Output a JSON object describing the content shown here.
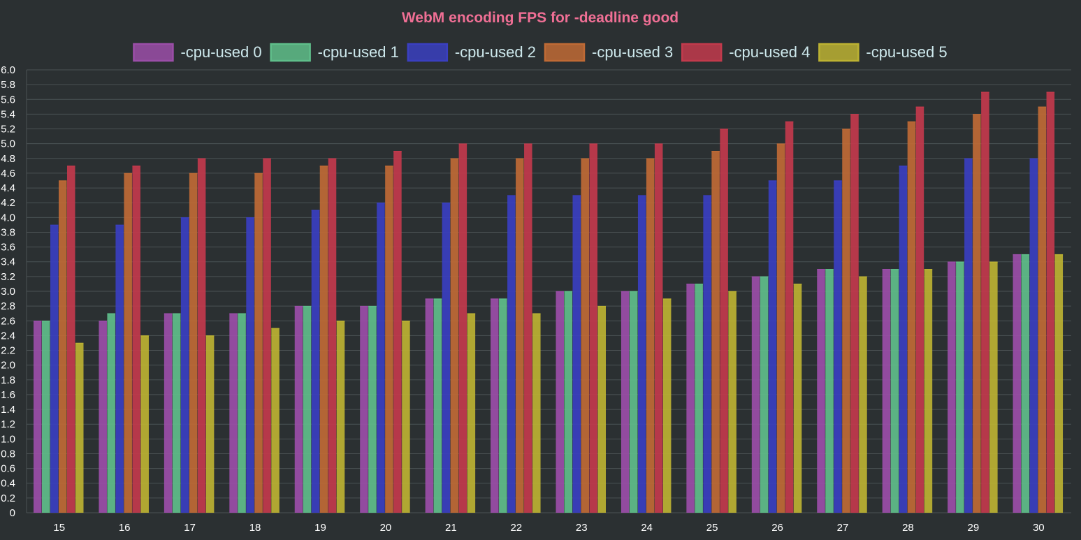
{
  "colors": {
    "background": "#2b3032",
    "grid": "#4b5254",
    "title": "#f06f95",
    "legend_text": "#cde8ec",
    "tick_text": "#ffffff"
  },
  "chart_data": {
    "type": "bar",
    "title": "WebM encoding FPS for -deadline good",
    "xlabel": "",
    "ylabel": "",
    "categories": [
      "15",
      "16",
      "17",
      "18",
      "19",
      "20",
      "21",
      "22",
      "23",
      "24",
      "25",
      "26",
      "27",
      "28",
      "29",
      "30"
    ],
    "ylim": [
      0,
      6.0
    ],
    "ytick_step": 0.2,
    "grid": true,
    "legend_position": "top",
    "series": [
      {
        "name": "-cpu-used 0",
        "color": "#9b4ea8",
        "values": [
          2.6,
          2.6,
          2.7,
          2.7,
          2.8,
          2.8,
          2.9,
          2.9,
          3.0,
          3.0,
          3.1,
          3.2,
          3.3,
          3.3,
          3.4,
          3.5
        ]
      },
      {
        "name": "-cpu-used 1",
        "color": "#5fbe8a",
        "values": [
          2.6,
          2.7,
          2.7,
          2.7,
          2.8,
          2.8,
          2.9,
          2.9,
          3.0,
          3.0,
          3.1,
          3.2,
          3.3,
          3.3,
          3.4,
          3.5
        ]
      },
      {
        "name": "-cpu-used 2",
        "color": "#3a3fc0",
        "values": [
          3.9,
          3.9,
          4.0,
          4.0,
          4.1,
          4.2,
          4.2,
          4.3,
          4.3,
          4.3,
          4.3,
          4.5,
          4.5,
          4.7,
          4.8,
          4.8
        ]
      },
      {
        "name": "-cpu-used 3",
        "color": "#bf6a35",
        "values": [
          4.5,
          4.6,
          4.6,
          4.6,
          4.7,
          4.7,
          4.8,
          4.8,
          4.8,
          4.8,
          4.9,
          5.0,
          5.2,
          5.3,
          5.4,
          5.5
        ]
      },
      {
        "name": "-cpu-used 4",
        "color": "#c23a4c",
        "values": [
          4.7,
          4.7,
          4.8,
          4.8,
          4.8,
          4.9,
          5.0,
          5.0,
          5.0,
          5.0,
          5.2,
          5.3,
          5.4,
          5.5,
          5.7,
          5.7
        ]
      },
      {
        "name": "-cpu-used 5",
        "color": "#bcb232",
        "values": [
          2.3,
          2.4,
          2.4,
          2.5,
          2.6,
          2.6,
          2.7,
          2.7,
          2.8,
          2.9,
          3.0,
          3.1,
          3.2,
          3.3,
          3.4,
          3.5
        ]
      }
    ]
  }
}
